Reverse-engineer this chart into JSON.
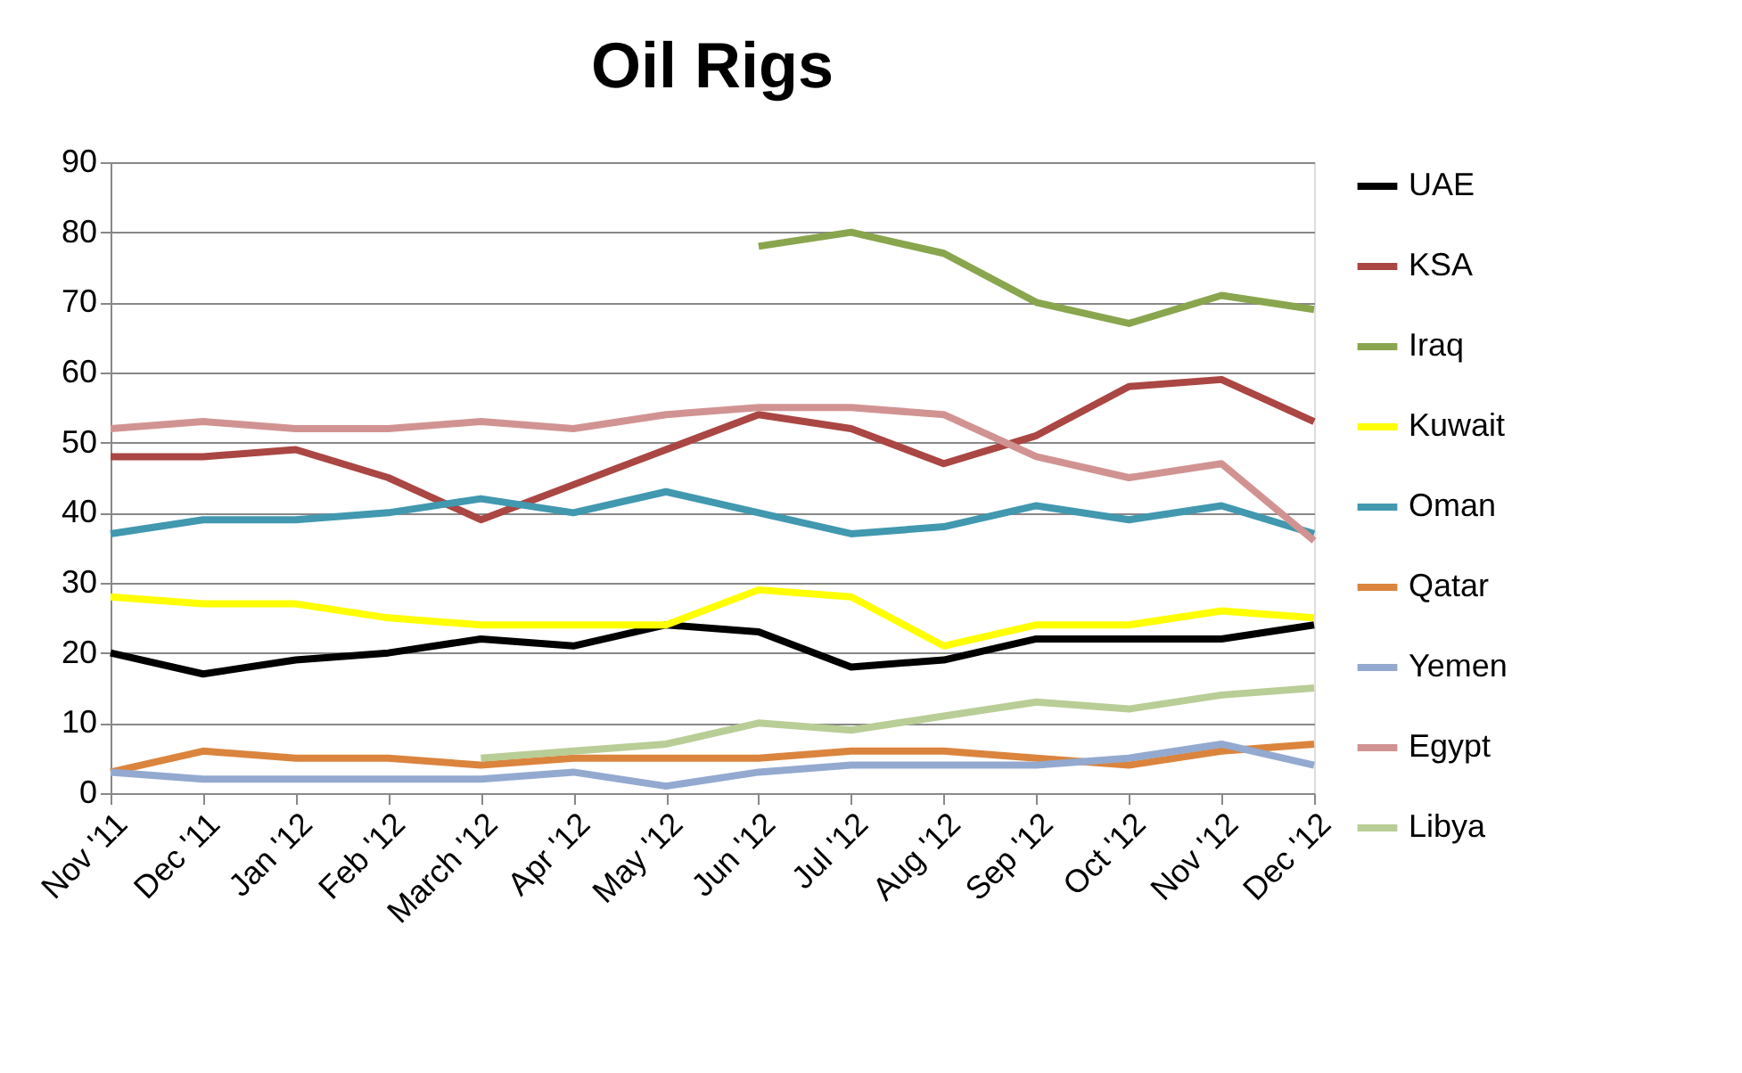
{
  "chart_data": {
    "type": "line",
    "title": "Oil Rigs",
    "categories": [
      "Nov '11",
      "Dec '11",
      "Jan '12",
      "Feb '12",
      "March '12",
      "Apr '12",
      "May '12",
      "Jun '12",
      "Jul '12",
      "Aug '12",
      "Sep '12",
      "Oct '12",
      "Nov '12",
      "Dec '12"
    ],
    "series": [
      {
        "name": "UAE",
        "color": "#000000",
        "values": [
          20,
          17,
          19,
          20,
          22,
          21,
          24,
          23,
          18,
          19,
          22,
          22,
          22,
          24
        ]
      },
      {
        "name": "KSA",
        "color": "#aa4643",
        "values": [
          48,
          48,
          49,
          45,
          39,
          44,
          49,
          54,
          52,
          47,
          51,
          58,
          59,
          53
        ]
      },
      {
        "name": "Iraq",
        "color": "#89a54e",
        "values": [
          null,
          null,
          null,
          null,
          null,
          null,
          null,
          78,
          80,
          77,
          70,
          67,
          71,
          69
        ]
      },
      {
        "name": "Kuwait",
        "color": "#ffff00",
        "values": [
          28,
          27,
          27,
          25,
          24,
          24,
          24,
          29,
          28,
          21,
          24,
          24,
          26,
          25
        ]
      },
      {
        "name": "Oman",
        "color": "#4198af",
        "values": [
          37,
          39,
          39,
          40,
          42,
          40,
          43,
          40,
          37,
          38,
          41,
          39,
          41,
          37
        ]
      },
      {
        "name": "Qatar",
        "color": "#db843d",
        "values": [
          3,
          6,
          5,
          5,
          4,
          5,
          5,
          5,
          6,
          6,
          5,
          4,
          6,
          7
        ]
      },
      {
        "name": "Yemen",
        "color": "#93a9cf",
        "values": [
          3,
          2,
          2,
          2,
          2,
          3,
          1,
          3,
          4,
          4,
          4,
          5,
          7,
          4
        ]
      },
      {
        "name": "Egypt",
        "color": "#d19392",
        "values": [
          52,
          53,
          52,
          52,
          53,
          52,
          54,
          55,
          55,
          54,
          48,
          45,
          47,
          36
        ]
      },
      {
        "name": "Libya",
        "color": "#b9cd96",
        "values": [
          null,
          null,
          null,
          null,
          5,
          6,
          7,
          10,
          9,
          11,
          13,
          12,
          14,
          15
        ]
      }
    ],
    "ylim": [
      0,
      90
    ],
    "yticks": [
      0,
      10,
      20,
      30,
      40,
      50,
      60,
      70,
      80,
      90
    ],
    "grid": "y",
    "legend": "right",
    "marker": "none",
    "line_style": "solid"
  }
}
